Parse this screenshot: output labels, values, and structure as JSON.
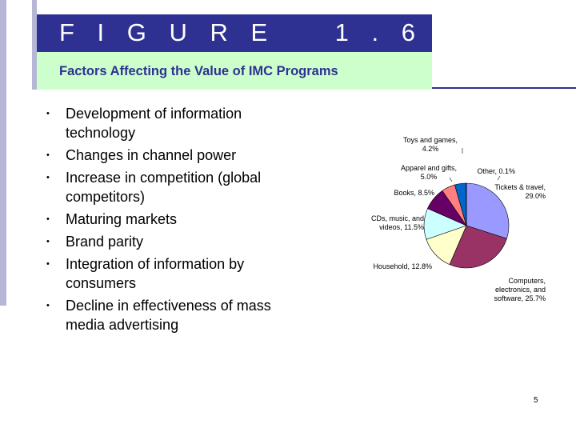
{
  "slide": {
    "title": "F I G U R E    1 . 6",
    "subtitle": "Factors Affecting the Value of  IMC Programs",
    "bullet_symbol": "•",
    "bullets": [
      "Development of information technology",
      "Changes in channel power",
      "Increase in competition (global competitors)",
      "Maturing markets",
      "Brand parity",
      "Integration of information by consumers",
      "Decline in effectiveness of mass media advertising"
    ],
    "page_number": "5"
  },
  "colors": {
    "title_bar": "#2e3192",
    "subtitle_bar": "#ccffcc",
    "stripe": "#b6b6d6"
  },
  "chart_data": {
    "type": "pie",
    "title": "",
    "slices": [
      {
        "name": "Tickets & travel, 29.0%",
        "lines": [
          "Tickets & travel,",
          "29.0%"
        ],
        "value": 29.0,
        "color": "#9999ff"
      },
      {
        "name": "Computers, electronics, and software, 25.7%",
        "lines": [
          "Computers,",
          "electronics, and",
          "software, 25.7%"
        ],
        "value": 25.7,
        "color": "#993366"
      },
      {
        "name": "Household, 12.8%",
        "lines": [
          "Household, 12.8%"
        ],
        "value": 12.8,
        "color": "#ffffcc"
      },
      {
        "name": "CDs, music, and videos, 11.5%",
        "lines": [
          "CDs, music, and",
          "videos, 11.5%"
        ],
        "value": 11.5,
        "color": "#ccffff"
      },
      {
        "name": "Books, 8.5%",
        "lines": [
          "Books, 8.5%"
        ],
        "value": 8.5,
        "color": "#660066"
      },
      {
        "name": "Apparel and gifts, 5.0%",
        "lines": [
          "Apparel and gifts,",
          "5.0%"
        ],
        "value": 5.0,
        "color": "#ff8080"
      },
      {
        "name": "Toys and games, 4.2%",
        "lines": [
          "Toys and games,",
          "4.2%"
        ],
        "value": 4.2,
        "color": "#0066cc"
      },
      {
        "name": "Other, 0.1%",
        "lines": [
          "Other, 0.1%"
        ],
        "value": 0.1,
        "color": "#ccccff"
      }
    ]
  }
}
